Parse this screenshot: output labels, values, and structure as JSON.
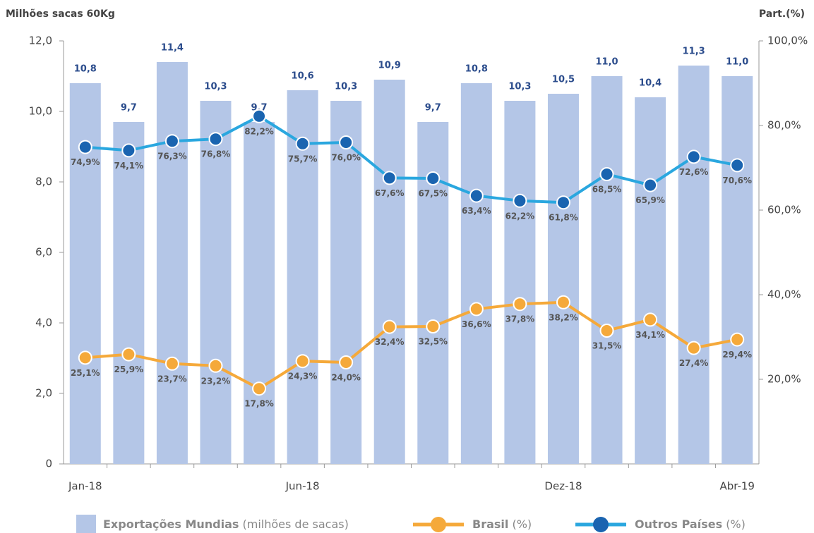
{
  "chart_data": {
    "type": "bar",
    "y_label": "Milhões sacas 60Kg",
    "y2_label": "Part.(%)",
    "categories": [
      "Jan-18",
      null,
      null,
      null,
      null,
      "Jun-18",
      null,
      null,
      null,
      null,
      null,
      "Dez-18",
      null,
      null,
      null,
      "Abr-19"
    ],
    "ylim": [
      0,
      12
    ],
    "yticks": [
      0,
      {
        "value": 2,
        "label": "2,0"
      },
      {
        "value": 4,
        "label": "4,0"
      },
      {
        "value": 6,
        "label": "6,0"
      },
      {
        "value": 8,
        "label": "8,0"
      },
      {
        "value": 10,
        "label": "10,0"
      },
      {
        "value": 12,
        "label": "12,0"
      }
    ],
    "y2lim": [
      0,
      100
    ],
    "y2ticks": [
      {
        "value": 20,
        "label": "20,0%"
      },
      {
        "value": 40,
        "label": "40,0%"
      },
      {
        "value": 60,
        "label": "60,0%"
      },
      {
        "value": 80,
        "label": "80,0%"
      },
      {
        "value": 100,
        "label": "100,0%"
      }
    ],
    "series": [
      {
        "name": "Exportações Mundias",
        "name_note": "(milhões de sacas)",
        "type": "bar",
        "color": "#b4c6e7",
        "values": [
          10.8,
          9.7,
          11.4,
          10.3,
          9.7,
          10.6,
          10.3,
          10.9,
          9.7,
          10.8,
          10.3,
          10.5,
          11.0,
          10.4,
          11.3,
          11.0
        ],
        "value_labels": [
          "10,8",
          "9,7",
          "11,4",
          "10,3",
          "9,7",
          "10,6",
          "10,3",
          "10,9",
          "9,7",
          "10,8",
          "10,3",
          "10,5",
          "11,0",
          "10,4",
          "11,3",
          "11,0"
        ]
      },
      {
        "name": "Brasil",
        "name_note": "(%)",
        "type": "line",
        "axis": "y2",
        "color": "#f5a93a",
        "values": [
          25.1,
          25.9,
          23.7,
          23.2,
          17.8,
          24.3,
          24.0,
          32.4,
          32.5,
          36.6,
          37.8,
          38.2,
          31.5,
          34.1,
          27.4,
          29.4
        ],
        "value_labels": [
          "25,1%",
          "25,9%",
          "23,7%",
          "23,2%",
          "17,8%",
          "24,3%",
          "24,0%",
          "32,4%",
          "32,5%",
          "36,6%",
          "37,8%",
          "38,2%",
          "31,5%",
          "34,1%",
          "27,4%",
          "29,4%"
        ]
      },
      {
        "name": "Outros Países",
        "name_note": "(%)",
        "type": "line",
        "axis": "y2",
        "color": "#2aa7df",
        "marker_color": "#1a64b0",
        "values": [
          74.9,
          74.1,
          76.3,
          76.8,
          82.2,
          75.7,
          76.0,
          67.6,
          67.5,
          63.4,
          62.2,
          61.8,
          68.5,
          65.9,
          72.6,
          70.6
        ],
        "value_labels": [
          "74,9%",
          "74,1%",
          "76,3%",
          "76,8%",
          "82,2%",
          "75,7%",
          "76,0%",
          "67,6%",
          "67,5%",
          "63,4%",
          "62,2%",
          "61,8%",
          "68,5%",
          "65,9%",
          "72,6%",
          "70,6%"
        ]
      }
    ]
  }
}
